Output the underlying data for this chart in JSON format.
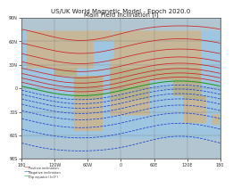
{
  "title_line1": "US/UK World Magnetic Model - Epoch 2020.0",
  "title_line2": "Main Field Inclination (I)",
  "title_fontsize": 5.0,
  "bg_ocean": "#a8c8e0",
  "xlim": [
    -180,
    180
  ],
  "ylim": [
    -90,
    90
  ],
  "xticks": [
    -180,
    -120,
    -60,
    0,
    60,
    120,
    180
  ],
  "yticks": [
    -90,
    -60,
    -30,
    0,
    30,
    60,
    90
  ],
  "xtick_labels": [
    "180",
    "120W",
    "60W",
    "0",
    "60E",
    "120E",
    "180"
  ],
  "ytick_labels": [
    "90S",
    "60S",
    "30S",
    "0",
    "30N",
    "60N",
    "90N"
  ],
  "tick_fontsize": 3.5,
  "contour_positive_color": "#cc2222",
  "contour_negative_color": "#2244bb",
  "contour_zero_color": "#229922",
  "contour_linewidth": 0.55,
  "zero_linewidth": 0.75,
  "grid_color": "#888888",
  "grid_linewidth": 0.3,
  "border_color": "#444444"
}
